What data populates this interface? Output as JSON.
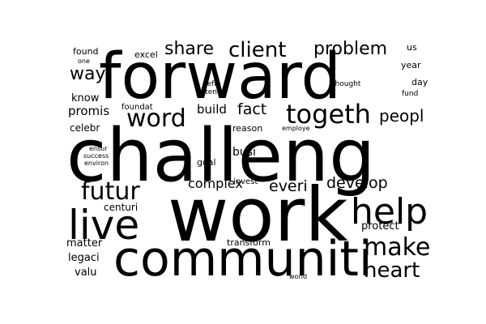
{
  "background_color": "#ffffff",
  "text_color": "#000000",
  "words": [
    {
      "id": "forward",
      "text": "forward"
    },
    {
      "id": "challeng",
      "text": "challeng"
    },
    {
      "id": "work",
      "text": "work"
    },
    {
      "id": "communiti",
      "text": "communiti"
    },
    {
      "id": "live",
      "text": "live"
    },
    {
      "id": "help",
      "text": "help"
    },
    {
      "id": "futur",
      "text": "futur"
    },
    {
      "id": "togeth",
      "text": "togeth"
    },
    {
      "id": "word",
      "text": "word"
    },
    {
      "id": "make",
      "text": "make"
    },
    {
      "id": "heart",
      "text": "heart"
    },
    {
      "id": "client",
      "text": "client"
    },
    {
      "id": "share",
      "text": "share"
    },
    {
      "id": "problem",
      "text": "problem"
    },
    {
      "id": "way",
      "text": "way"
    },
    {
      "id": "peopl",
      "text": "peopl"
    },
    {
      "id": "develop",
      "text": "develop"
    },
    {
      "id": "everi",
      "text": "everi"
    },
    {
      "id": "complex",
      "text": "complex"
    },
    {
      "id": "fact",
      "text": "fact"
    },
    {
      "id": "build",
      "text": "build"
    },
    {
      "id": "busi",
      "text": "busi"
    },
    {
      "id": "promis",
      "text": "promis"
    },
    {
      "id": "know",
      "text": "know"
    },
    {
      "id": "matter",
      "text": "matter"
    },
    {
      "id": "legaci",
      "text": "legaci"
    },
    {
      "id": "valu",
      "text": "valu"
    },
    {
      "id": "protect",
      "text": "protect"
    },
    {
      "id": "centuri",
      "text": "centuri"
    },
    {
      "id": "transform",
      "text": "transform"
    },
    {
      "id": "celebr",
      "text": "celebr"
    },
    {
      "id": "reason",
      "text": "reason"
    },
    {
      "id": "goal",
      "text": "goal"
    },
    {
      "id": "invest",
      "text": "invest"
    },
    {
      "id": "found",
      "text": "found"
    },
    {
      "id": "excel",
      "text": "excel"
    },
    {
      "id": "us",
      "text": "us"
    },
    {
      "id": "year",
      "text": "year"
    },
    {
      "id": "day",
      "text": "day"
    },
    {
      "id": "fund",
      "text": "fund"
    },
    {
      "id": "thought",
      "text": "thought"
    },
    {
      "id": "defin",
      "text": "defin"
    },
    {
      "id": "potenti",
      "text": "potenti"
    },
    {
      "id": "foundat",
      "text": "foundat"
    },
    {
      "id": "one",
      "text": "one"
    },
    {
      "id": "employe",
      "text": "employe"
    },
    {
      "id": "ensur",
      "text": "ensur"
    },
    {
      "id": "success",
      "text": "success"
    },
    {
      "id": "environ",
      "text": "environ"
    },
    {
      "id": "world",
      "text": "world"
    }
  ]
}
